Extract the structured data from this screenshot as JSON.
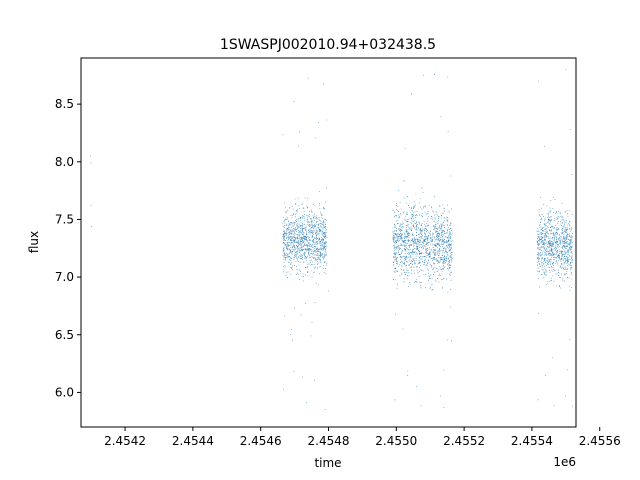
{
  "chart_data": {
    "type": "scatter",
    "title": "1SWASPJ002010.94+032438.5",
    "xlabel": "time",
    "ylabel": "flux",
    "x_offset_label": "1e6",
    "xlim": [
      2454070,
      2455530
    ],
    "ylim": [
      5.7,
      8.9
    ],
    "x_ticks": [
      2454200,
      2454400,
      2454600,
      2454800,
      2455000,
      2455200,
      2455400,
      2455600
    ],
    "x_tick_labels": [
      "2.4542",
      "2.4544",
      "2.4546",
      "2.4548",
      "2.4550",
      "2.4552",
      "2.4554",
      "2.4556"
    ],
    "y_ticks": [
      6.0,
      6.5,
      7.0,
      7.5,
      8.0,
      8.5
    ],
    "y_tick_labels": [
      "6.0",
      "6.5",
      "7.0",
      "7.5",
      "8.0",
      "8.5"
    ],
    "grid": false,
    "marker_color": "#1f77b4",
    "series": [
      {
        "values": [
          [
            2454098,
            8.05
          ],
          [
            2454099,
            7.99
          ],
          [
            2454100,
            7.62
          ],
          [
            2454101,
            7.44
          ],
          [
            2454680,
            7.58
          ],
          [
            2454700,
            7.1
          ],
          [
            2454720,
            7.31
          ],
          [
            2454740,
            8.72
          ],
          [
            2454760,
            6.78
          ],
          [
            2454780,
            7.46
          ],
          [
            2454790,
            5.85
          ],
          [
            2454800,
            6.88
          ],
          [
            2455000,
            7.62
          ],
          [
            2455020,
            6.55
          ],
          [
            2455040,
            7.28
          ],
          [
            2455060,
            6.05
          ],
          [
            2455080,
            8.75
          ],
          [
            2455100,
            7.11
          ],
          [
            2455120,
            7.39
          ],
          [
            2455140,
            5.87
          ],
          [
            2455160,
            6.74
          ],
          [
            2455420,
            8.7
          ],
          [
            2455440,
            7.21
          ],
          [
            2455460,
            6.3
          ],
          [
            2455480,
            7.52
          ],
          [
            2455500,
            8.8
          ],
          [
            2455510,
            6.92
          ],
          [
            2455520,
            5.88
          ]
        ]
      }
    ],
    "visits": [
      {
        "x_start": 2454665,
        "x_end": 2454795,
        "y_center": 7.32,
        "core_half_width": 0.28,
        "outlier_min": 5.85,
        "outlier_max": 8.72
      },
      {
        "x_start": 2454990,
        "x_end": 2455165,
        "y_center": 7.3,
        "core_half_width": 0.33,
        "outlier_min": 5.85,
        "outlier_max": 8.78
      },
      {
        "x_start": 2455415,
        "x_end": 2455520,
        "y_center": 7.28,
        "core_half_width": 0.3,
        "outlier_min": 5.85,
        "outlier_max": 8.8
      }
    ]
  }
}
